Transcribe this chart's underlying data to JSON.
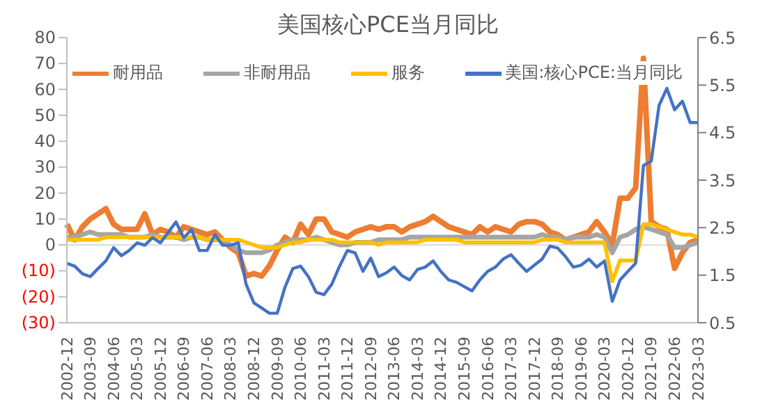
{
  "chart_data": {
    "type": "line",
    "title": "美国核心PCE当月同比",
    "categories": [
      "2002-12",
      null,
      null,
      "2003-09",
      null,
      null,
      "2004-06",
      null,
      null,
      "2005-03",
      null,
      null,
      "2005-12",
      null,
      null,
      "2006-09",
      null,
      null,
      "2007-06",
      null,
      null,
      "2008-03",
      null,
      null,
      "2008-12",
      null,
      null,
      "2009-09",
      null,
      null,
      "2010-06",
      null,
      null,
      "2011-03",
      null,
      null,
      "2011-12",
      null,
      null,
      "2012-09",
      null,
      null,
      "2013-06",
      null,
      null,
      "2014-03",
      null,
      null,
      "2014-12",
      null,
      null,
      "2015-09",
      null,
      null,
      "2016-06",
      null,
      null,
      "2017-03",
      null,
      null,
      "2017-12",
      null,
      null,
      "2018-09",
      null,
      null,
      "2019-06",
      null,
      null,
      "2020-03",
      null,
      null,
      "2020-12",
      null,
      null,
      "2021-09",
      null,
      null,
      "2022-06",
      null,
      null,
      "2023-03"
    ],
    "series": [
      {
        "name": "耐用品",
        "color": "#ed7d31",
        "values": [
          8,
          2,
          7,
          10,
          12,
          14,
          8,
          6,
          6,
          6,
          12,
          4,
          6,
          5,
          3,
          7,
          6,
          5,
          4,
          5,
          2,
          -1,
          -3,
          -12,
          -11,
          -12,
          -8,
          -2,
          3,
          1,
          8,
          4,
          10,
          10,
          5,
          4,
          3,
          5,
          6,
          7,
          6,
          7,
          7,
          5,
          7,
          8,
          9,
          11,
          9,
          7,
          6,
          5,
          4,
          7,
          5,
          7,
          6,
          5,
          8,
          9,
          9,
          8,
          5,
          4,
          2,
          3,
          4,
          5,
          9,
          5,
          0,
          18,
          18,
          22,
          72,
          9,
          7,
          6,
          -9,
          -3,
          1,
          2
        ]
      },
      {
        "name": "非耐用品",
        "color": "#a5a5a5",
        "values": [
          3,
          3,
          4,
          5,
          4,
          4,
          4,
          4,
          3,
          3,
          3,
          4,
          3,
          3,
          3,
          2,
          3,
          3,
          2,
          2,
          2,
          0,
          -2,
          -3,
          -3,
          -3,
          -2,
          0,
          1,
          2,
          2,
          2,
          3,
          2,
          1,
          0,
          0,
          1,
          1,
          1,
          2,
          2,
          2,
          2,
          3,
          3,
          3,
          3,
          3,
          3,
          3,
          3,
          3,
          3,
          3,
          3,
          3,
          3,
          3,
          3,
          3,
          4,
          3,
          3,
          2,
          3,
          3,
          3,
          4,
          3,
          -3,
          3,
          4,
          6,
          7,
          6,
          5,
          4,
          -1,
          -1,
          0,
          1
        ]
      },
      {
        "name": "服务",
        "color": "#ffc000",
        "values": [
          2,
          2,
          2,
          2,
          2,
          3,
          3,
          3,
          3,
          3,
          3,
          3,
          3,
          3,
          3,
          3,
          3,
          3,
          2,
          2,
          2,
          2,
          2,
          1,
          0,
          -1,
          -1,
          -1,
          0,
          1,
          1,
          2,
          2,
          2,
          2,
          1,
          1,
          1,
          1,
          1,
          0,
          1,
          1,
          1,
          1,
          1,
          2,
          2,
          2,
          2,
          2,
          1,
          1,
          1,
          1,
          1,
          1,
          1,
          1,
          1,
          1,
          2,
          2,
          2,
          1,
          1,
          1,
          1,
          1,
          1,
          -14,
          -6,
          -6,
          -6,
          8,
          8,
          7,
          6,
          5,
          4,
          4,
          3
        ]
      },
      {
        "name": "美国:核心PCE:当月同比",
        "color": "#4472c4",
        "axis": "y2",
        "values": [
          1.75,
          1.69,
          1.53,
          1.47,
          1.64,
          1.8,
          2.08,
          1.91,
          2.02,
          2.18,
          2.13,
          2.29,
          2.18,
          2.4,
          2.62,
          2.29,
          2.46,
          2.02,
          2.02,
          2.35,
          2.13,
          2.13,
          2.18,
          1.31,
          0.92,
          0.81,
          0.7,
          0.7,
          1.25,
          1.64,
          1.69,
          1.47,
          1.14,
          1.09,
          1.31,
          1.69,
          2.02,
          1.97,
          1.58,
          1.86,
          1.47,
          1.55,
          1.67,
          1.49,
          1.4,
          1.62,
          1.67,
          1.8,
          1.58,
          1.4,
          1.35,
          1.26,
          1.17,
          1.4,
          1.58,
          1.67,
          1.84,
          1.93,
          1.75,
          1.58,
          1.71,
          1.84,
          2.11,
          2.07,
          1.89,
          1.67,
          1.71,
          1.84,
          1.67,
          1.8,
          0.95,
          1.4,
          1.58,
          1.75,
          3.81,
          3.9,
          5.07,
          5.43,
          4.98,
          5.16,
          4.71,
          4.71
        ]
      }
    ],
    "ylim": [
      -30,
      80
    ],
    "yticks": [
      {
        "value": -30,
        "label": "(30)"
      },
      {
        "value": -20,
        "label": "(20)"
      },
      {
        "value": -10,
        "label": "(10)"
      },
      0,
      10,
      20,
      30,
      40,
      50,
      60,
      70,
      80
    ],
    "y2lim": [
      0.5,
      6.5
    ],
    "y2ticks": [
      0.5,
      1.5,
      2.5,
      3.5,
      4.5,
      5.5,
      6.5
    ],
    "ref_lines": [
      {
        "axis": "y",
        "value": 0,
        "color": "#d9d9d9"
      }
    ],
    "legend": "top",
    "marker": "none",
    "line_style": "solid"
  }
}
